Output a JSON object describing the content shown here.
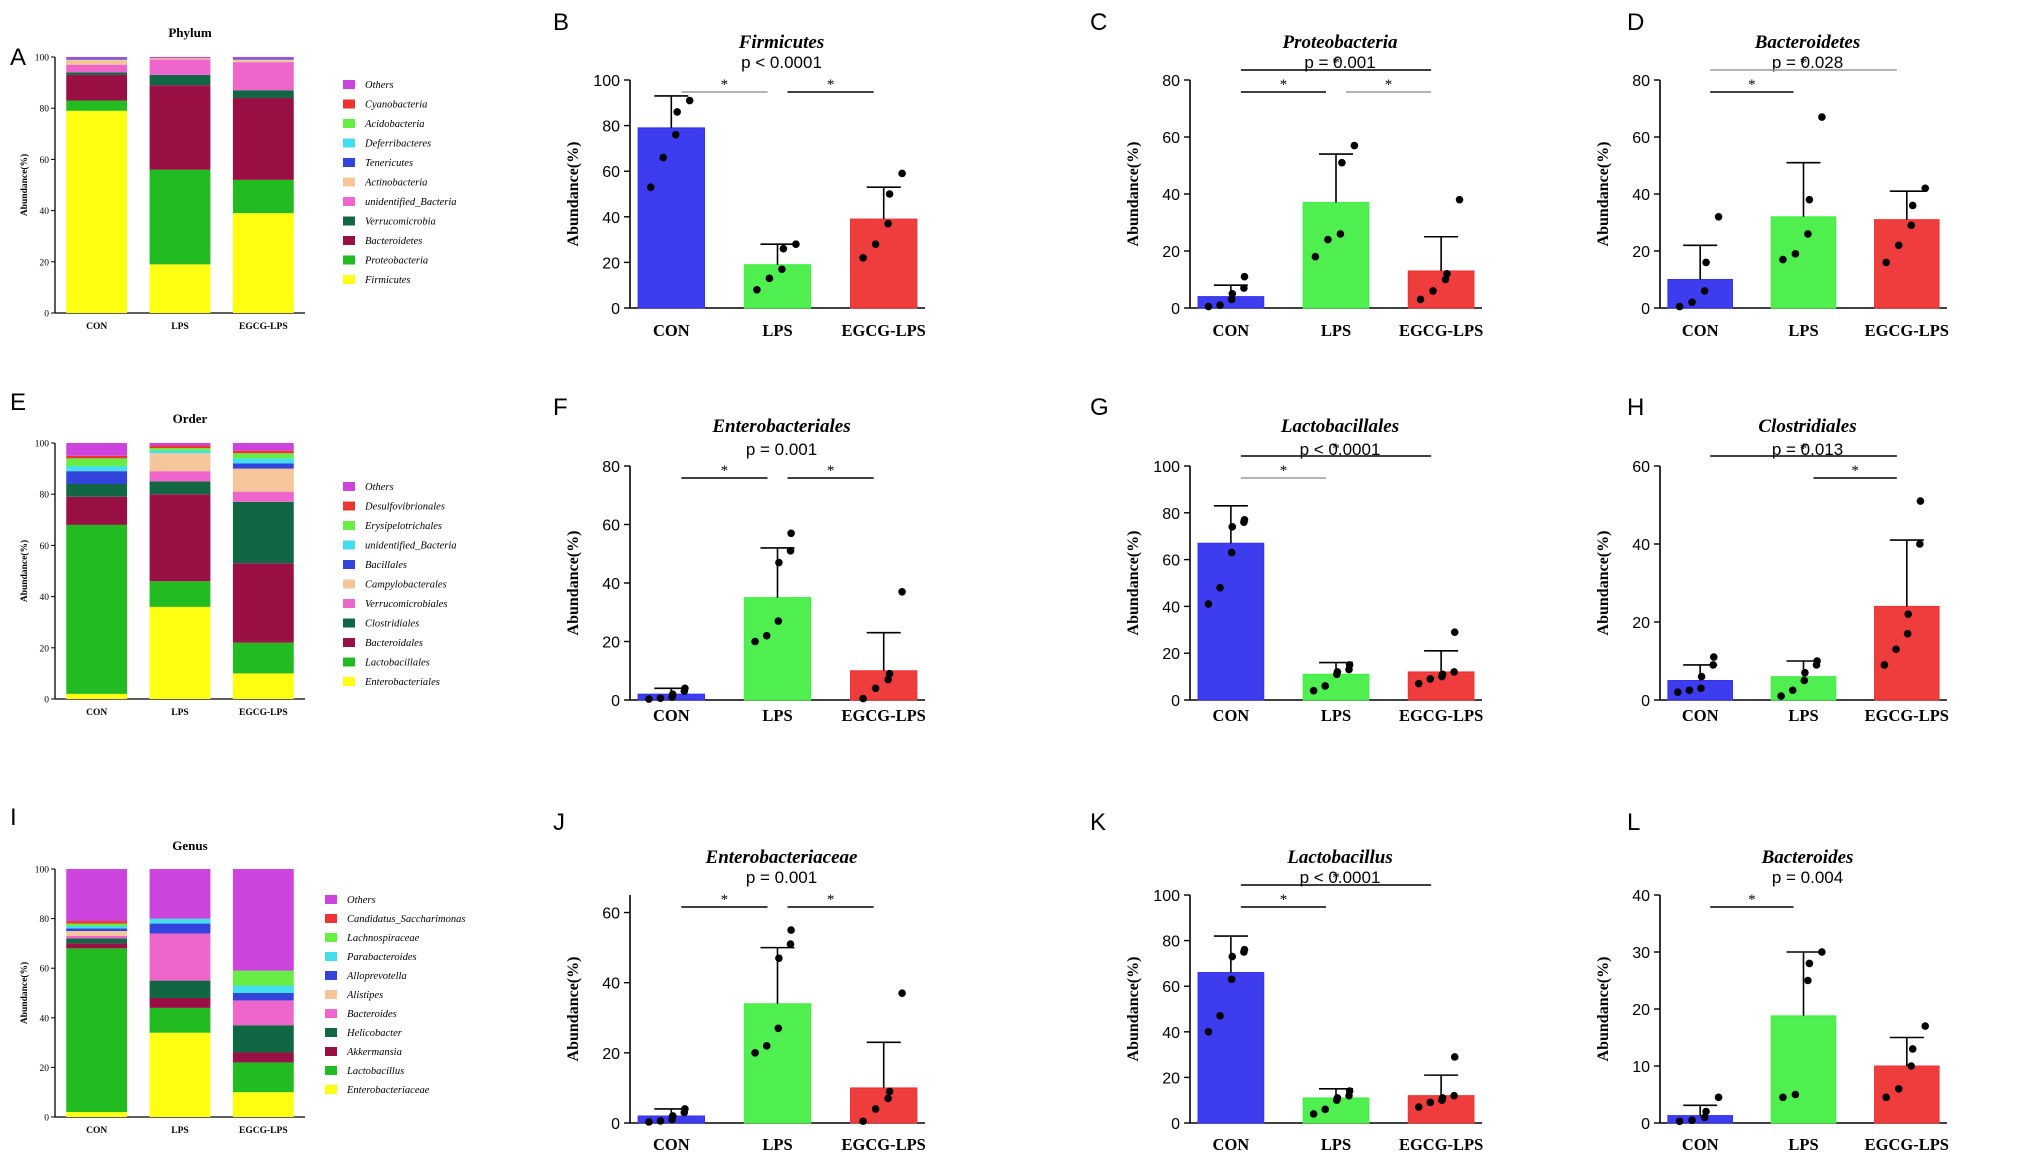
{
  "colors": {
    "CON": "#3333ee",
    "LPS": "#44ee44",
    "EGCG-LPS": "#ee3333",
    "sig_black": "#000000",
    "sig_gray": "#9a9a9a"
  },
  "stack_groups": [
    "CON",
    "LPS",
    "EGCG-LPS"
  ],
  "stack_panels": [
    {
      "letter": "A",
      "title": "Phylum",
      "ylabel": "Abundance(%)",
      "yticks": [
        0,
        20,
        40,
        60,
        80,
        100
      ],
      "legend": [
        {
          "name": "Others",
          "color": "#cc44dd"
        },
        {
          "name": "Cyanobacteria",
          "color": "#ee3333"
        },
        {
          "name": "Acidobacteria",
          "color": "#66ee44"
        },
        {
          "name": "Deferribacteres",
          "color": "#44ddee"
        },
        {
          "name": "Tenericutes",
          "color": "#3344dd"
        },
        {
          "name": "Actinobacteria",
          "color": "#f5c69a"
        },
        {
          "name": "unidentified_Bacteria",
          "color": "#ee66cc"
        },
        {
          "name": "Verrucomicrobia",
          "color": "#116644"
        },
        {
          "name": "Bacteroidetes",
          "color": "#991144"
        },
        {
          "name": "Proteobacteria",
          "color": "#22bb22"
        },
        {
          "name": "Firmicutes",
          "color": "#ffff11"
        }
      ],
      "values": {
        "CON": [
          79,
          4,
          10,
          1,
          3,
          2,
          0.5,
          0,
          0,
          0,
          0.5
        ],
        "LPS": [
          19,
          37,
          33,
          4,
          6,
          0.5,
          0,
          0,
          0,
          0,
          0.5
        ],
        "EGCG-LPS": [
          39,
          13,
          32,
          3,
          11,
          1,
          0.5,
          0,
          0,
          0,
          0.5
        ]
      }
    },
    {
      "letter": "E",
      "title": "Order",
      "ylabel": "Abundance(%)",
      "yticks": [
        0,
        20,
        40,
        60,
        80,
        100
      ],
      "legend": [
        {
          "name": "Others",
          "color": "#cc44dd"
        },
        {
          "name": "Desulfovibrionales",
          "color": "#ee3333"
        },
        {
          "name": "Erysipelotrichales",
          "color": "#66ee44"
        },
        {
          "name": "unidentified_Bacteria",
          "color": "#44ddee"
        },
        {
          "name": "Bacillales",
          "color": "#3344dd"
        },
        {
          "name": "Campylobacterales",
          "color": "#f5c69a"
        },
        {
          "name": "Verrucomicrobiales",
          "color": "#ee66cc"
        },
        {
          "name": "Clostridiales",
          "color": "#116644"
        },
        {
          "name": "Bacteroidales",
          "color": "#991144"
        },
        {
          "name": "Lactobacillales",
          "color": "#22bb22"
        },
        {
          "name": "Enterobacteriales",
          "color": "#ffff11"
        }
      ],
      "values": {
        "CON": [
          2,
          66,
          11,
          5,
          0,
          0,
          5,
          2,
          3,
          1,
          5
        ],
        "LPS": [
          36,
          10,
          34,
          5,
          4,
          7,
          0,
          1,
          1,
          1,
          1
        ],
        "EGCG-LPS": [
          10,
          12,
          31,
          24,
          4,
          9,
          2,
          2,
          2,
          1,
          3
        ]
      }
    },
    {
      "letter": "I",
      "title": "Genus",
      "ylabel": "Abundance(%)",
      "yticks": [
        0,
        20,
        40,
        60,
        80,
        100
      ],
      "legend": [
        {
          "name": "Others",
          "color": "#cc44dd"
        },
        {
          "name": "Candidatus_Saccharimonas",
          "color": "#ee3333"
        },
        {
          "name": "Lachnospiraceae",
          "color": "#66ee44"
        },
        {
          "name": "Parabacteroides",
          "color": "#44ddee"
        },
        {
          "name": "Alloprevotella",
          "color": "#3344dd"
        },
        {
          "name": "Alistipes",
          "color": "#f5c69a"
        },
        {
          "name": "Bacteroides",
          "color": "#ee66cc"
        },
        {
          "name": "Helicobacter",
          "color": "#116644"
        },
        {
          "name": "Akkermansia",
          "color": "#991144"
        },
        {
          "name": "Lactobacillus",
          "color": "#22bb22"
        },
        {
          "name": "Enterobacteriaceae",
          "color": "#ffff11"
        }
      ],
      "values": {
        "CON": [
          2,
          66,
          2,
          2,
          1,
          2,
          1,
          1,
          1,
          1,
          21
        ],
        "LPS": [
          34,
          10,
          4,
          7,
          19,
          0,
          4,
          2,
          0,
          0,
          20
        ],
        "EGCG-LPS": [
          10,
          12,
          4,
          11,
          10,
          0,
          3,
          3,
          6,
          0,
          41
        ]
      }
    }
  ],
  "chart_data": [
    {
      "letter": "B",
      "type": "bar",
      "title": "Firmicutes",
      "subtitle": "p < 0.0001",
      "ylabel": "Abundance(%)",
      "ylim": [
        0,
        100
      ],
      "yticks": [
        0,
        20,
        40,
        60,
        80,
        100
      ],
      "categories": [
        "CON",
        "LPS",
        "EGCG-LPS"
      ],
      "values": [
        79,
        19,
        39
      ],
      "sd": [
        14,
        9,
        14
      ],
      "points": [
        [
          53,
          66,
          76,
          86,
          91
        ],
        [
          8,
          13,
          17,
          26,
          28
        ],
        [
          22,
          28,
          37,
          50,
          59
        ]
      ],
      "sig": [
        {
          "from": 0,
          "to": 1,
          "label": "*",
          "style": "gray",
          "level": 1
        },
        {
          "from": 1,
          "to": 2,
          "label": "*",
          "style": "black",
          "level": 1
        }
      ]
    },
    {
      "letter": "C",
      "type": "bar",
      "title": "Proteobacteria",
      "subtitle": "p = 0.001",
      "ylabel": "Abundance(%)",
      "ylim": [
        0,
        80
      ],
      "yticks": [
        0,
        20,
        40,
        60,
        80
      ],
      "categories": [
        "CON",
        "LPS",
        "EGCG-LPS"
      ],
      "values": [
        4,
        37,
        13
      ],
      "sd": [
        4,
        17,
        12
      ],
      "points": [
        [
          0.5,
          1,
          3,
          5,
          7,
          11
        ],
        [
          18,
          24,
          26,
          51,
          57
        ],
        [
          3,
          6,
          10,
          12,
          38
        ]
      ],
      "sig": [
        {
          "from": 0,
          "to": 1,
          "label": "*",
          "style": "black",
          "level": 1
        },
        {
          "from": 1,
          "to": 2,
          "label": "*",
          "style": "gray",
          "level": 1
        },
        {
          "from": 0,
          "to": 2,
          "label": "*",
          "style": "black",
          "level": 2
        }
      ]
    },
    {
      "letter": "D",
      "type": "bar",
      "title": "Bacteroidetes",
      "subtitle": "p = 0.028",
      "ylabel": "Abundance(%)",
      "ylim": [
        0,
        80
      ],
      "yticks": [
        0,
        20,
        40,
        60,
        80
      ],
      "categories": [
        "CON",
        "LPS",
        "EGCG-LPS"
      ],
      "values": [
        10,
        32,
        31
      ],
      "sd": [
        12,
        19,
        10
      ],
      "points": [
        [
          0.5,
          2,
          6,
          16,
          32
        ],
        [
          17,
          19,
          26,
          38,
          67
        ],
        [
          16,
          22,
          29,
          36,
          42
        ]
      ],
      "sig": [
        {
          "from": 0,
          "to": 1,
          "label": "*",
          "style": "black",
          "level": 1
        },
        {
          "from": 0,
          "to": 2,
          "label": "*",
          "style": "gray",
          "level": 2
        }
      ]
    },
    {
      "letter": "F",
      "type": "bar",
      "title": "Enterobacteriales",
      "subtitle": "p = 0.001",
      "ylabel": "Abundance(%)",
      "ylim": [
        0,
        80
      ],
      "yticks": [
        0,
        20,
        40,
        60,
        80
      ],
      "categories": [
        "CON",
        "LPS",
        "EGCG-LPS"
      ],
      "values": [
        2,
        35,
        10
      ],
      "sd": [
        2,
        17,
        13
      ],
      "points": [
        [
          0.3,
          0.6,
          1,
          2,
          3,
          4
        ],
        [
          20,
          22,
          27,
          47,
          51,
          57
        ],
        [
          0.5,
          4,
          7,
          9,
          37
        ]
      ],
      "sig": [
        {
          "from": 0,
          "to": 1,
          "label": "*",
          "style": "black",
          "level": 1
        },
        {
          "from": 1,
          "to": 2,
          "label": "*",
          "style": "black",
          "level": 1
        }
      ]
    },
    {
      "letter": "G",
      "type": "bar",
      "title": "Lactobacillales",
      "subtitle": "p < 0.0001",
      "ylabel": "Abundance(%)",
      "ylim": [
        0,
        100
      ],
      "yticks": [
        0,
        20,
        40,
        60,
        80,
        100
      ],
      "categories": [
        "CON",
        "LPS",
        "EGCG-LPS"
      ],
      "values": [
        67,
        11,
        12
      ],
      "sd": [
        16,
        5,
        9
      ],
      "points": [
        [
          41,
          48,
          63,
          74,
          76,
          77
        ],
        [
          4,
          6,
          11,
          12,
          13,
          15
        ],
        [
          7,
          9,
          10,
          11,
          12,
          29
        ]
      ],
      "sig": [
        {
          "from": 0,
          "to": 1,
          "label": "*",
          "style": "gray",
          "level": 1
        },
        {
          "from": 0,
          "to": 2,
          "label": "*",
          "style": "black",
          "level": 2
        }
      ]
    },
    {
      "letter": "H",
      "type": "bar",
      "title": "Clostridiales",
      "subtitle": "p = 0.013",
      "ylabel": "Abundance(%)",
      "ylim": [
        0,
        60
      ],
      "yticks": [
        0,
        20,
        40,
        60
      ],
      "categories": [
        "CON",
        "LPS",
        "EGCG-LPS"
      ],
      "values": [
        5,
        6,
        24
      ],
      "sd": [
        4,
        4,
        17
      ],
      "points": [
        [
          2,
          2.5,
          3,
          6,
          9,
          11
        ],
        [
          1,
          2.5,
          5,
          7,
          9,
          10
        ],
        [
          9,
          13,
          17,
          22,
          40,
          51
        ]
      ],
      "sig": [
        {
          "from": 1,
          "to": 2,
          "label": "*",
          "style": "black",
          "level": 1
        },
        {
          "from": 0,
          "to": 2,
          "label": "*",
          "style": "black",
          "level": 2
        }
      ]
    },
    {
      "letter": "J",
      "type": "bar",
      "title": "Enterobacteriaceae",
      "subtitle": "p = 0.001",
      "ylabel": "Abundance(%)",
      "ylim": [
        0,
        65
      ],
      "yticks": [
        0,
        20,
        40,
        60
      ],
      "categories": [
        "CON",
        "LPS",
        "EGCG-LPS"
      ],
      "values": [
        2,
        34,
        10
      ],
      "sd": [
        2,
        16,
        13
      ],
      "points": [
        [
          0.3,
          0.6,
          1,
          2,
          3,
          4
        ],
        [
          20,
          22,
          27,
          47,
          51,
          55
        ],
        [
          0.5,
          4,
          7,
          9,
          37
        ]
      ],
      "sig": [
        {
          "from": 0,
          "to": 1,
          "label": "*",
          "style": "black",
          "level": 1
        },
        {
          "from": 1,
          "to": 2,
          "label": "*",
          "style": "black",
          "level": 1
        }
      ]
    },
    {
      "letter": "K",
      "type": "bar",
      "title": "Lactobacillus",
      "subtitle": "p < 0.0001",
      "ylabel": "Abundance(%)",
      "ylim": [
        0,
        100
      ],
      "yticks": [
        0,
        20,
        40,
        60,
        80,
        100
      ],
      "categories": [
        "CON",
        "LPS",
        "EGCG-LPS"
      ],
      "values": [
        66,
        11,
        12
      ],
      "sd": [
        16,
        4,
        9
      ],
      "points": [
        [
          40,
          47,
          63,
          73,
          75,
          76
        ],
        [
          4,
          6,
          10,
          11,
          12,
          14
        ],
        [
          7,
          9,
          10,
          11,
          12,
          29
        ]
      ],
      "sig": [
        {
          "from": 0,
          "to": 1,
          "label": "*",
          "style": "black",
          "level": 1
        },
        {
          "from": 0,
          "to": 2,
          "label": "*",
          "style": "black",
          "level": 2
        }
      ]
    },
    {
      "letter": "L",
      "type": "bar",
      "title": "Bacteroides",
      "subtitle": "p = 0.004",
      "ylabel": "Abundance(%)",
      "ylim": [
        0,
        40
      ],
      "yticks": [
        0,
        10,
        20,
        30,
        40
      ],
      "categories": [
        "CON",
        "LPS",
        "EGCG-LPS"
      ],
      "values": [
        1.3,
        18.8,
        10
      ],
      "sd": [
        1.8,
        11.2,
        5
      ],
      "points": [
        [
          0.3,
          0.5,
          1,
          2,
          4.5
        ],
        [
          4.5,
          5,
          25,
          28,
          30
        ],
        [
          4.5,
          6,
          10,
          13,
          17
        ]
      ],
      "sig": [
        {
          "from": 0,
          "to": 1,
          "label": "*",
          "style": "black",
          "level": 1
        }
      ]
    }
  ]
}
